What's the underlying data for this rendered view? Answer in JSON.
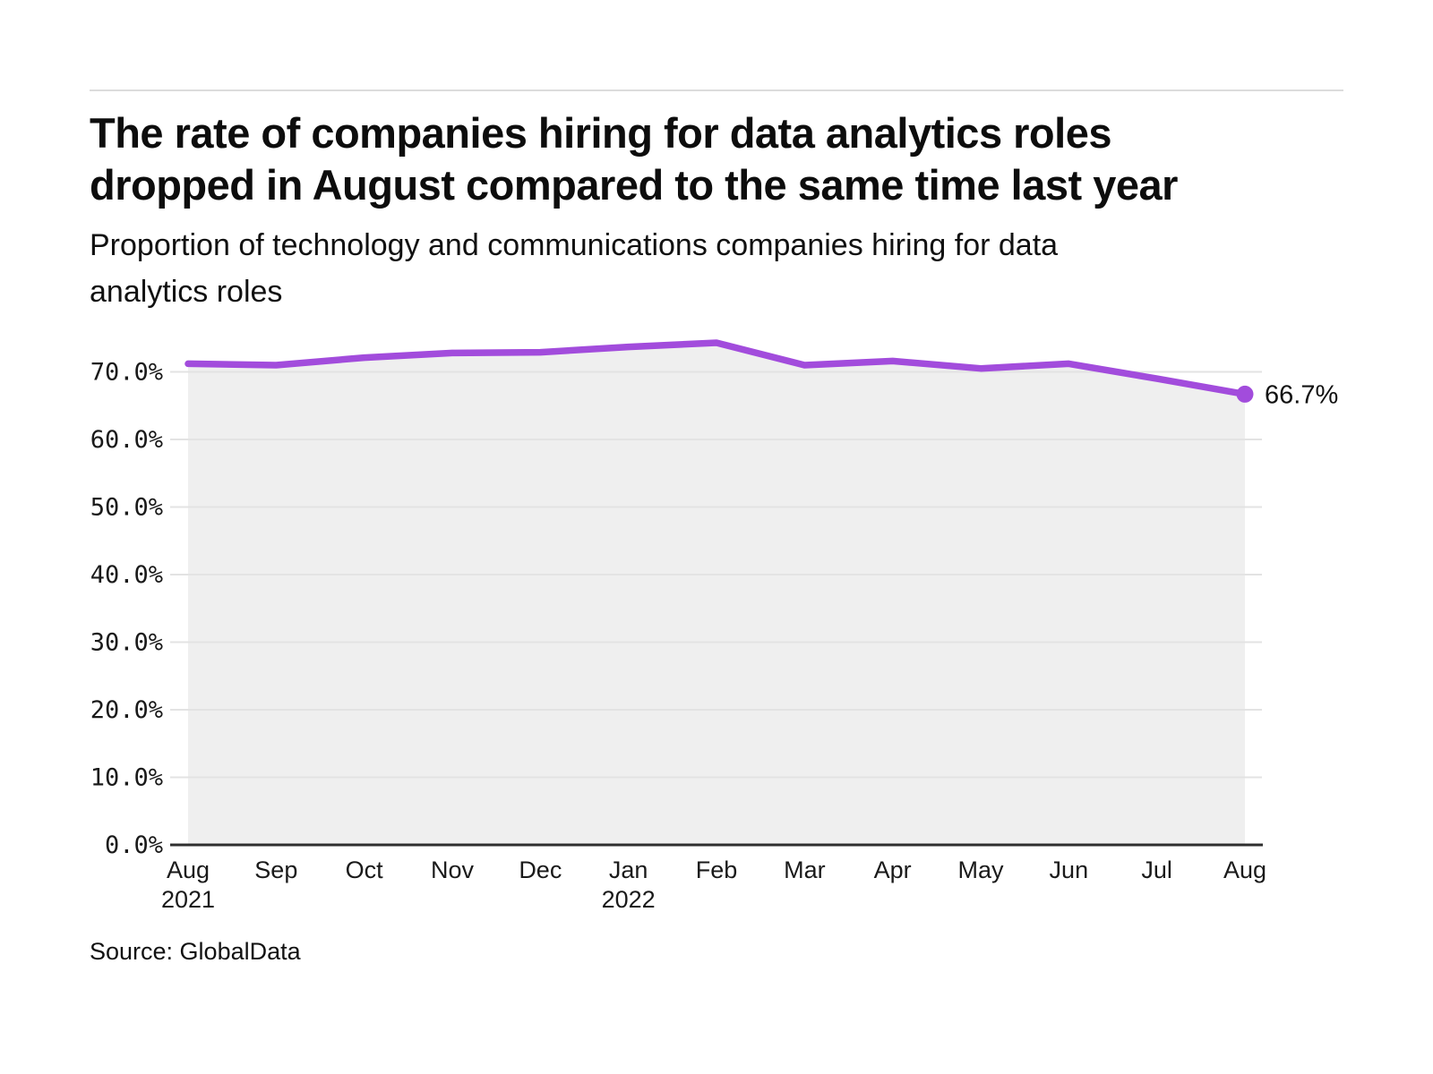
{
  "page": {
    "title_lines": [
      "The rate of companies hiring for data analytics roles",
      "dropped in August compared to the same time last year"
    ],
    "subtitle_lines": [
      "Proportion of technology and communications companies hiring for data",
      "analytics roles"
    ],
    "source": "Source: GlobalData"
  },
  "colors": {
    "line": "#a24cdc",
    "area_fill": "#efefef",
    "gridline": "#e3e3e3",
    "axis_line": "#2e2e2e",
    "tick_text": "#1a1a1a",
    "annotation_text": "#111111",
    "top_rule": "#dcdcdc"
  },
  "chart_data": {
    "type": "line",
    "title": "The rate of companies hiring for data analytics roles dropped in August compared to the same time last year",
    "subtitle": "Proportion of technology and communications companies hiring for data analytics roles",
    "source": "Source: GlobalData",
    "xlabel": "",
    "ylabel": "",
    "ylim": [
      0,
      75
    ],
    "grid": "horizontal",
    "legend": "none",
    "categories": [
      "Aug 2021",
      "Sep",
      "Oct",
      "Nov",
      "Dec",
      "Jan 2022",
      "Feb",
      "Mar",
      "Apr",
      "May",
      "Jun",
      "Jul",
      "Aug"
    ],
    "series": [
      {
        "name": "Proportion of technology and communications companies hiring for data analytics roles",
        "values": [
          71.2,
          71.0,
          72.1,
          72.8,
          72.9,
          73.7,
          74.3,
          71.0,
          71.6,
          70.5,
          71.2,
          69.0,
          66.7
        ]
      }
    ],
    "y_ticks": [
      {
        "value": 70,
        "label": "70.0%"
      },
      {
        "value": 60,
        "label": "60.0%"
      },
      {
        "value": 50,
        "label": "50.0%"
      },
      {
        "value": 40,
        "label": "40.0%"
      },
      {
        "value": 30,
        "label": "30.0%"
      },
      {
        "value": 20,
        "label": "20.0%"
      },
      {
        "value": 10,
        "label": "10.0%"
      },
      {
        "value": 0,
        "label": "0.0%"
      }
    ],
    "x_ticks": [
      {
        "label": "Aug",
        "sub": "2021"
      },
      {
        "label": "Sep",
        "sub": ""
      },
      {
        "label": "Oct",
        "sub": ""
      },
      {
        "label": "Nov",
        "sub": ""
      },
      {
        "label": "Dec",
        "sub": ""
      },
      {
        "label": "Jan",
        "sub": "2022"
      },
      {
        "label": "Feb",
        "sub": ""
      },
      {
        "label": "Mar",
        "sub": ""
      },
      {
        "label": "Apr",
        "sub": ""
      },
      {
        "label": "May",
        "sub": ""
      },
      {
        "label": "Jun",
        "sub": ""
      },
      {
        "label": "Jul",
        "sub": ""
      },
      {
        "label": "Aug",
        "sub": ""
      }
    ],
    "annotation": {
      "label": "66.7%",
      "x_index": 12,
      "value": 66.7
    }
  }
}
